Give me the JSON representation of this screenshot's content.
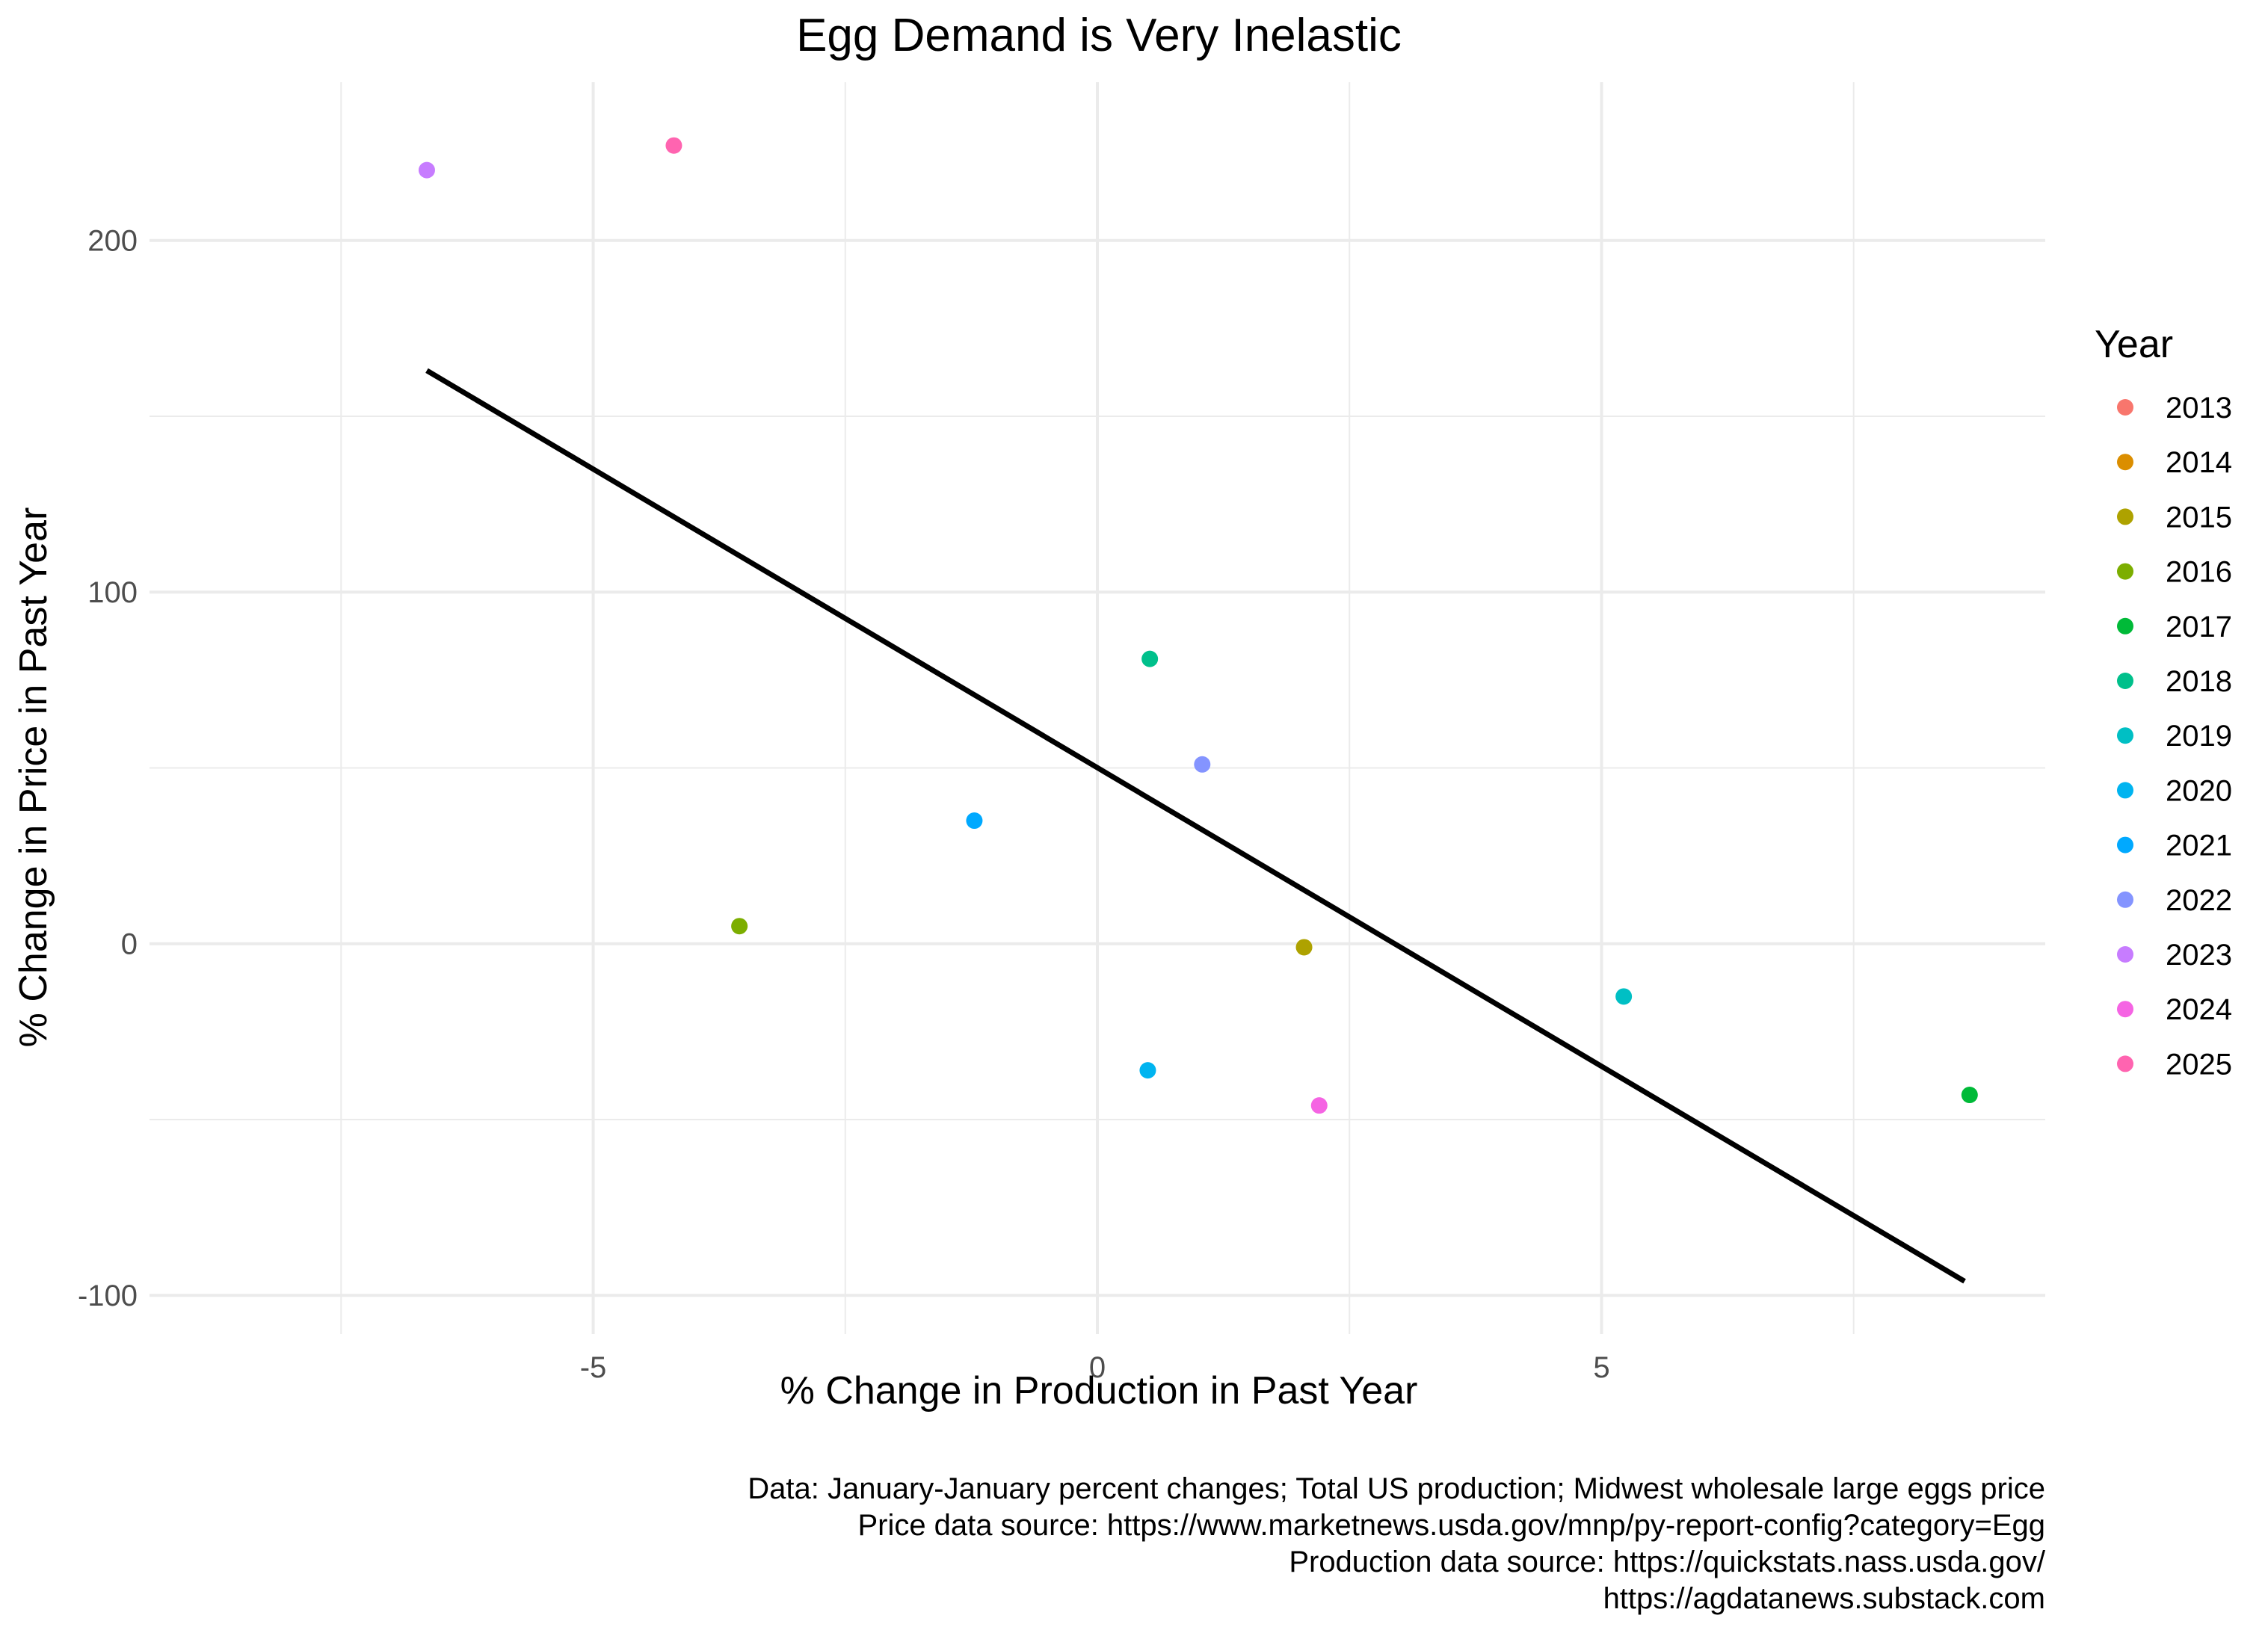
{
  "chart_data": {
    "type": "scatter",
    "title": "Egg Demand is Very Inelastic",
    "xlabel": "% Change in Production in Past Year",
    "ylabel": "% Change in Price in Past Year",
    "xlim": [
      -9.4,
      9.4
    ],
    "ylim": [
      -111,
      245
    ],
    "x_ticks": [
      -5,
      0,
      5
    ],
    "x_tick_labels": [
      "-5",
      "0",
      "5"
    ],
    "y_ticks": [
      -100,
      0,
      100,
      200
    ],
    "y_tick_labels": [
      "-100",
      "0",
      "100",
      "200"
    ],
    "grid": true,
    "legend": {
      "title": "Year",
      "position": "right",
      "items": [
        {
          "label": "2013",
          "color": "#F8766D"
        },
        {
          "label": "2014",
          "color": "#DB8E00"
        },
        {
          "label": "2015",
          "color": "#AEA200"
        },
        {
          "label": "2016",
          "color": "#7CAE00"
        },
        {
          "label": "2017",
          "color": "#00BA38"
        },
        {
          "label": "2018",
          "color": "#00C08B"
        },
        {
          "label": "2019",
          "color": "#00BFC4"
        },
        {
          "label": "2020",
          "color": "#00B4F0"
        },
        {
          "label": "2021",
          "color": "#00A9FF"
        },
        {
          "label": "2022",
          "color": "#8494FF"
        },
        {
          "label": "2023",
          "color": "#C77CFF"
        },
        {
          "label": "2024",
          "color": "#F564E3"
        },
        {
          "label": "2025",
          "color": "#FF64B0"
        }
      ]
    },
    "points": [
      {
        "year": "2015",
        "x": 2.05,
        "y": -1
      },
      {
        "year": "2016",
        "x": -3.55,
        "y": 5
      },
      {
        "year": "2017",
        "x": 8.65,
        "y": -43
      },
      {
        "year": "2018",
        "x": 0.52,
        "y": 81
      },
      {
        "year": "2019",
        "x": 5.22,
        "y": -15
      },
      {
        "year": "2020",
        "x": 0.5,
        "y": -36
      },
      {
        "year": "2021",
        "x": -1.22,
        "y": 35
      },
      {
        "year": "2022",
        "x": 1.04,
        "y": 51
      },
      {
        "year": "2023",
        "x": -6.65,
        "y": 220
      },
      {
        "year": "2024",
        "x": 2.2,
        "y": -46
      },
      {
        "year": "2025",
        "x": -4.2,
        "y": 227
      }
    ],
    "fit_line": {
      "x": [
        -6.65,
        8.6
      ],
      "y": [
        163,
        -96
      ],
      "color": "#000000"
    },
    "caption": [
      "Data: January-January percent changes; Total US production; Midwest wholesale large eggs price",
      "Price data source: https://www.marketnews.usda.gov/mnp/py-report-config?category=Egg",
      "Production data source: https://quickstats.nass.usda.gov/",
      "https://agdatanews.substack.com"
    ]
  }
}
